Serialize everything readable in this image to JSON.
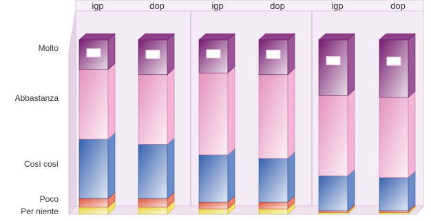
{
  "chart_data": {
    "type": "bar",
    "stacked": true,
    "three_d": true,
    "categories": [
      "igp",
      "dop",
      "igp",
      "dop",
      "igp",
      "dop"
    ],
    "y_ticks": [
      "Molto",
      "Abbastanza",
      "Così così",
      "Poco",
      "Per niente"
    ],
    "series": [
      {
        "key": "per_niente",
        "values": [
          4,
          4,
          3,
          3,
          1,
          1
        ]
      },
      {
        "key": "poco",
        "values": [
          5,
          5,
          4,
          4,
          1,
          1
        ]
      },
      {
        "key": "cosi_cosi",
        "values": [
          34,
          31,
          27,
          25,
          20,
          19
        ]
      },
      {
        "key": "abbastanza",
        "values": [
          40,
          40,
          47,
          48,
          46,
          46
        ]
      },
      {
        "key": "molto",
        "values": [
          17,
          20,
          19,
          20,
          32,
          33
        ]
      }
    ],
    "ylim": [
      0,
      100
    ],
    "colors": {
      "per_niente": "#f2dc3a",
      "poco": "#e8553a",
      "cosi_cosi": "#3a66b8",
      "abbastanza": "#f09ac6",
      "molto": "#7b1d74",
      "frame": "#dcc3dc",
      "gridline": "#c9a5c9"
    },
    "legend": "none",
    "grid": false
  }
}
